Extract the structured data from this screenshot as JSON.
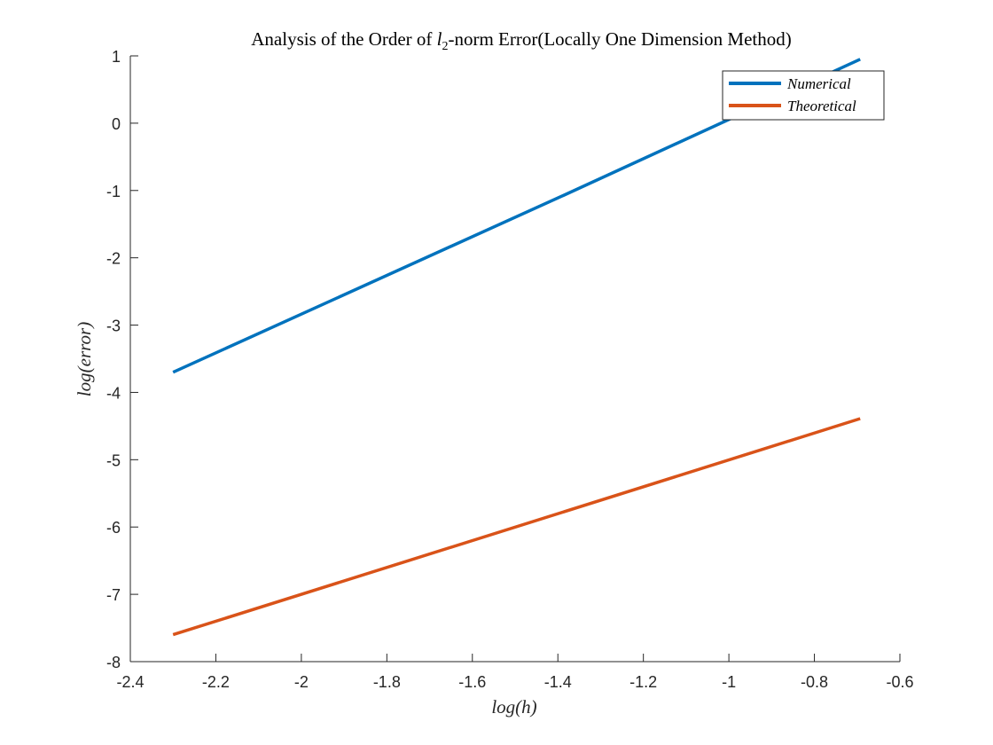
{
  "chart_data": {
    "type": "line",
    "title": "Analysis of the Order of l2-norm Error(Locally One Dimension Method)",
    "title_parts": {
      "before": "Analysis of the Order of ",
      "var": "l",
      "sub": "2",
      "after": "-norm Error(Locally One Dimension Method)"
    },
    "xlabel": "log(h)",
    "ylabel": "log(error)",
    "xlim": [
      -2.4,
      -0.6
    ],
    "ylim": [
      -8,
      1
    ],
    "xticks": [
      -2.4,
      -2.2,
      -2,
      -1.8,
      -1.6,
      -1.4,
      -1.2,
      -1,
      -0.8,
      -0.6
    ],
    "yticks": [
      -8,
      -7,
      -6,
      -5,
      -4,
      -3,
      -2,
      -1,
      0,
      1
    ],
    "grid": false,
    "legend_position": "top-right",
    "series": [
      {
        "name": "Numerical",
        "color": "#0072BD",
        "x": [
          -2.3,
          -1.386,
          -0.693
        ],
        "y": [
          -3.7,
          -1.07,
          0.95
        ]
      },
      {
        "name": "Theoretical",
        "color": "#D95319",
        "x": [
          -2.3,
          -0.693
        ],
        "y": [
          -7.6,
          -4.39
        ]
      }
    ]
  }
}
